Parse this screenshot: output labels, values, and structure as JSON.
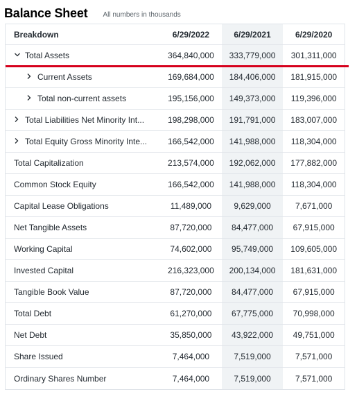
{
  "header": {
    "title": "Balance Sheet",
    "note": "All numbers in thousands"
  },
  "table": {
    "columns": [
      "Breakdown",
      "6/29/2022",
      "6/29/2021",
      "6/29/2020"
    ],
    "rows": [
      {
        "label": "Total Assets",
        "values": [
          "364,840,000",
          "333,779,000",
          "301,311,000"
        ]
      },
      {
        "label": "Current Assets",
        "values": [
          "169,684,000",
          "184,406,000",
          "181,915,000"
        ]
      },
      {
        "label": "Total non-current assets",
        "values": [
          "195,156,000",
          "149,373,000",
          "119,396,000"
        ]
      },
      {
        "label": "Total Liabilities Net Minority Int...",
        "values": [
          "198,298,000",
          "191,791,000",
          "183,007,000"
        ]
      },
      {
        "label": "Total Equity Gross Minority Inte...",
        "values": [
          "166,542,000",
          "141,988,000",
          "118,304,000"
        ]
      },
      {
        "label": "Total Capitalization",
        "values": [
          "213,574,000",
          "192,062,000",
          "177,882,000"
        ]
      },
      {
        "label": "Common Stock Equity",
        "values": [
          "166,542,000",
          "141,988,000",
          "118,304,000"
        ]
      },
      {
        "label": "Capital Lease Obligations",
        "values": [
          "11,489,000",
          "9,629,000",
          "7,671,000"
        ]
      },
      {
        "label": "Net Tangible Assets",
        "values": [
          "87,720,000",
          "84,477,000",
          "67,915,000"
        ]
      },
      {
        "label": "Working Capital",
        "values": [
          "74,602,000",
          "95,749,000",
          "109,605,000"
        ]
      },
      {
        "label": "Invested Capital",
        "values": [
          "216,323,000",
          "200,134,000",
          "181,631,000"
        ]
      },
      {
        "label": "Tangible Book Value",
        "values": [
          "87,720,000",
          "84,477,000",
          "67,915,000"
        ]
      },
      {
        "label": "Total Debt",
        "values": [
          "61,270,000",
          "67,775,000",
          "70,998,000"
        ]
      },
      {
        "label": "Net Debt",
        "values": [
          "35,850,000",
          "43,922,000",
          "49,751,000"
        ]
      },
      {
        "label": "Share Issued",
        "values": [
          "7,464,000",
          "7,519,000",
          "7,571,000"
        ]
      },
      {
        "label": "Ordinary Shares Number",
        "values": [
          "7,464,000",
          "7,519,000",
          "7,571,000"
        ]
      }
    ]
  },
  "colors": {
    "accent_underline": "#d6001c",
    "border": "#e0e4e9",
    "highlight_column": "#f0f3f5"
  },
  "icons": {
    "expanded": "chevron-down-icon",
    "collapsed": "chevron-right-icon"
  }
}
